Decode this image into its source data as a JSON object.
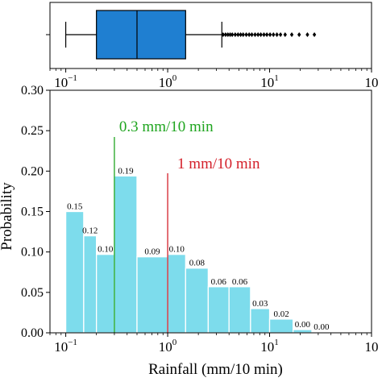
{
  "chart_data": [
    {
      "type": "boxplot",
      "xscale": "log",
      "xlim": [
        0.07,
        100
      ],
      "xticks": [
        {
          "value": 0.1,
          "base": "10",
          "exp": "−1"
        },
        {
          "value": 1,
          "base": "10",
          "exp": "0"
        },
        {
          "value": 10,
          "base": "10",
          "exp": "1"
        },
        {
          "value": 100,
          "base": "10",
          "exp": ""
        }
      ],
      "whisker_low": 0.1,
      "q1": 0.2,
      "median": 0.5,
      "q3": 1.5,
      "whisker_high": 3.4,
      "outliers": [
        3.5,
        3.7,
        3.9,
        4.1,
        4.3,
        4.6,
        4.9,
        5.2,
        5.5,
        5.9,
        6.3,
        6.7,
        7.2,
        7.7,
        8.2,
        8.8,
        9.4,
        10.1,
        10.9,
        11.8,
        12.8,
        14.2,
        16.5,
        19.5,
        23.5,
        27.5
      ],
      "box_color": "#1f7fd1"
    },
    {
      "type": "bar",
      "xscale": "log",
      "xlim": [
        0.07,
        100
      ],
      "ylim": [
        0,
        0.3
      ],
      "xlabel": "Rainfall (mm/10 min)",
      "ylabel": "Probability",
      "bar_color": "#7ddcec",
      "bins": [
        {
          "x0": 0.1,
          "x1": 0.15,
          "value": 0.15,
          "label": "0.15"
        },
        {
          "x0": 0.15,
          "x1": 0.2,
          "value": 0.12,
          "label": "0.12"
        },
        {
          "x0": 0.2,
          "x1": 0.3,
          "value": 0.097,
          "label": "0.10"
        },
        {
          "x0": 0.3,
          "x1": 0.5,
          "value": 0.194,
          "label": "0.19"
        },
        {
          "x0": 0.5,
          "x1": 1.0,
          "value": 0.094,
          "label": "0.09"
        },
        {
          "x0": 1.0,
          "x1": 1.5,
          "value": 0.097,
          "label": "0.10"
        },
        {
          "x0": 1.5,
          "x1": 2.5,
          "value": 0.08,
          "label": "0.08"
        },
        {
          "x0": 2.5,
          "x1": 4.0,
          "value": 0.057,
          "label": "0.06"
        },
        {
          "x0": 4.0,
          "x1": 6.5,
          "value": 0.057,
          "label": "0.06"
        },
        {
          "x0": 6.5,
          "x1": 10.0,
          "value": 0.03,
          "label": "0.03"
        },
        {
          "x0": 10.0,
          "x1": 17.0,
          "value": 0.017,
          "label": "0.02"
        },
        {
          "x0": 17.0,
          "x1": 26.0,
          "value": 0.004,
          "label": "0.00"
        },
        {
          "x0": 26.0,
          "x1": 40.0,
          "value": 0.001,
          "label": "0.00"
        }
      ],
      "yticks": [
        "0.00",
        "0.05",
        "0.10",
        "0.15",
        "0.20",
        "0.25",
        "0.30"
      ],
      "xticks": [
        {
          "value": 0.1,
          "base": "10",
          "exp": "−1"
        },
        {
          "value": 1,
          "base": "10",
          "exp": "0"
        },
        {
          "value": 10,
          "base": "10",
          "exp": "1"
        },
        {
          "value": 100,
          "base": "10",
          "exp": ""
        }
      ],
      "vlines": [
        {
          "x": 0.3,
          "label": "0.3 mm/10 min",
          "color": "#1fa51f"
        },
        {
          "x": 1.0,
          "label": "1 mm/10 min",
          "color": "#d4202a"
        }
      ]
    }
  ]
}
